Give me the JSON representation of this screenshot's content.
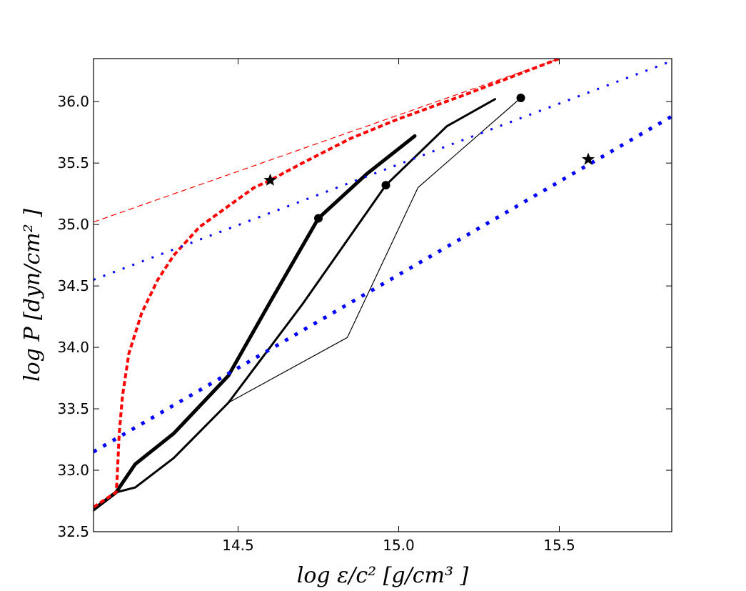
{
  "chart_data": {
    "type": "line",
    "title": "",
    "xlabel": "log ε/c² [g/cm³ ]",
    "ylabel": "log P [dyn/cm² ]",
    "xlim": [
      14.05,
      15.85
    ],
    "ylim": [
      32.5,
      36.35
    ],
    "x_ticks": [
      14.5,
      15.0,
      15.5
    ],
    "x_tick_labels": [
      "14.5",
      "15.0",
      "15.5"
    ],
    "y_ticks": [
      32.5,
      33.0,
      33.5,
      34.0,
      34.5,
      35.0,
      35.5,
      36.0
    ],
    "y_tick_labels": [
      "32.5",
      "33.0",
      "33.5",
      "34.0",
      "34.5",
      "35.0",
      "35.5",
      "36.0"
    ],
    "grid": false,
    "series": [
      {
        "name": "thick black",
        "color": "#000000",
        "style": "solid",
        "weight": "thick",
        "x": [
          14.05,
          14.12,
          14.18,
          14.3,
          14.47,
          14.6,
          14.75,
          14.9,
          15.05
        ],
        "y": [
          32.68,
          32.82,
          33.05,
          33.3,
          33.77,
          34.37,
          35.05,
          35.41,
          35.72
        ]
      },
      {
        "name": "medium black",
        "color": "#000000",
        "style": "solid",
        "weight": "medium",
        "x": [
          14.05,
          14.12,
          14.18,
          14.3,
          14.47,
          14.7,
          14.96,
          15.15,
          15.3
        ],
        "y": [
          32.68,
          32.82,
          32.86,
          33.1,
          33.55,
          34.35,
          35.32,
          35.8,
          36.02
        ]
      },
      {
        "name": "thin black",
        "color": "#000000",
        "style": "solid",
        "weight": "thin",
        "x": [
          14.47,
          14.84,
          15.06,
          15.38
        ],
        "y": [
          33.55,
          34.08,
          35.3,
          36.03
        ]
      },
      {
        "name": "thick red dashed",
        "color": "#ff0000",
        "style": "dashed",
        "weight": "thick",
        "x": [
          14.05,
          14.12,
          14.123,
          14.13,
          14.14,
          14.16,
          14.2,
          14.25,
          14.3,
          14.38,
          14.47,
          14.55,
          14.6,
          14.7,
          14.85,
          15.0,
          15.2,
          15.4,
          15.5
        ],
        "y": [
          32.7,
          32.82,
          32.9,
          33.3,
          33.6,
          33.95,
          34.28,
          34.55,
          34.75,
          34.98,
          35.15,
          35.3,
          35.36,
          35.5,
          35.7,
          35.86,
          36.05,
          36.25,
          36.35
        ]
      },
      {
        "name": "thin red dashed",
        "color": "#ff0000",
        "style": "dashed",
        "weight": "thin",
        "x": [
          14.05,
          15.5
        ],
        "y": [
          35.02,
          36.35
        ]
      },
      {
        "name": "blue small dots",
        "color": "#0000ff",
        "style": "dotted",
        "weight": "thin",
        "x": [
          14.05,
          15.85
        ],
        "y": [
          34.55,
          36.33
        ]
      },
      {
        "name": "blue square dots",
        "color": "#0000ff",
        "style": "dotted",
        "weight": "thick",
        "x": [
          14.05,
          15.85
        ],
        "y": [
          33.15,
          35.88
        ]
      }
    ],
    "markers": [
      {
        "name": "circle",
        "shape": "circle",
        "x": 14.75,
        "y": 35.05
      },
      {
        "name": "circle",
        "shape": "circle",
        "x": 14.96,
        "y": 35.32
      },
      {
        "name": "circle",
        "shape": "circle",
        "x": 15.38,
        "y": 36.03
      },
      {
        "name": "star",
        "shape": "star",
        "x": 14.6,
        "y": 35.36
      },
      {
        "name": "star",
        "shape": "star",
        "x": 15.59,
        "y": 35.53
      }
    ]
  }
}
